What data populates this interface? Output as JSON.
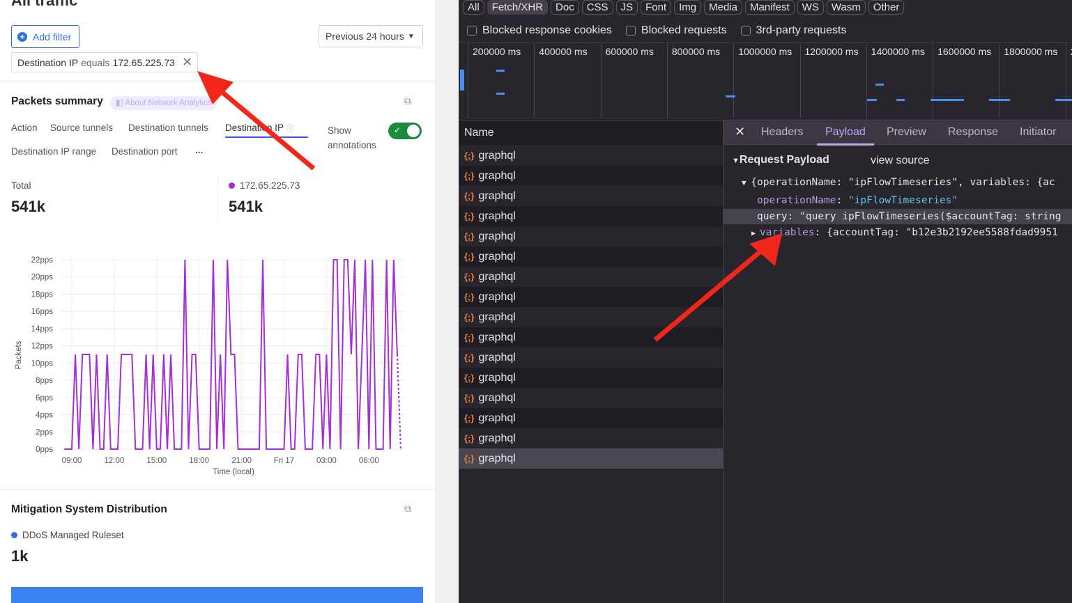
{
  "left": {
    "title": "All traffic",
    "add_filter": "Add filter",
    "time_range": "Previous 24 hours",
    "filter": {
      "field": "Destination IP",
      "operator": "equals",
      "value": "172.65.225.73"
    },
    "packets_title": "Packets summary",
    "about_link": "About Network Analytics",
    "tabs": [
      "Action",
      "Source tunnels",
      "Destination tunnels",
      "Destination IP",
      "Destination IP range",
      "Destination port",
      "..."
    ],
    "active_tab": "Destination IP",
    "show_annotations": "Show annotations",
    "annotations_on": true,
    "total_label": "Total",
    "total_value": "541k",
    "series_label": "172.65.225.73",
    "series_value": "541k",
    "mitigation_title": "Mitigation System Distribution",
    "mitigation_legend": "DDoS Managed Ruleset",
    "mitigation_value": "1k",
    "colors": {
      "accent": "#2f6fe4",
      "series": "#a52fd6",
      "toggle": "#1d8a3c"
    }
  },
  "chart_data": {
    "type": "line",
    "xlabel": "Time (local)",
    "ylabel": "Packets",
    "x_ticks": [
      "09:00",
      "12:00",
      "15:00",
      "18:00",
      "21:00",
      "Fri 17",
      "03:00",
      "06:00"
    ],
    "y_ticks": [
      "0pps",
      "2pps",
      "4pps",
      "6pps",
      "8pps",
      "10pps",
      "12pps",
      "14pps",
      "16pps",
      "18pps",
      "20pps",
      "22pps"
    ],
    "ylim": [
      0,
      22
    ],
    "grid": true,
    "series": [
      {
        "color": "#a52fd6",
        "points": [
          [
            "Thu 08:28",
            0
          ],
          [
            "Thu 09:00",
            0
          ],
          [
            "Thu 09:15",
            11
          ],
          [
            "Thu 09:30",
            0
          ],
          [
            "Thu 09:45",
            11
          ],
          [
            "Thu 10:15",
            11
          ],
          [
            "Thu 10:30",
            0
          ],
          [
            "Thu 10:45",
            11
          ],
          [
            "Thu 11:00",
            0
          ],
          [
            "Thu 11:15",
            0
          ],
          [
            "Thu 11:30",
            11
          ],
          [
            "Thu 11:45",
            0
          ],
          [
            "Thu 12:15",
            0
          ],
          [
            "Thu 12:30",
            11
          ],
          [
            "Thu 13:15",
            11
          ],
          [
            "Thu 13:30",
            0
          ],
          [
            "Thu 14:00",
            0
          ],
          [
            "Thu 14:15",
            11
          ],
          [
            "Thu 14:30",
            0
          ],
          [
            "Thu 14:45",
            11
          ],
          [
            "Thu 15:00",
            0
          ],
          [
            "Thu 15:15",
            0
          ],
          [
            "Thu 15:30",
            11
          ],
          [
            "Thu 15:45",
            0
          ],
          [
            "Thu 16:00",
            11
          ],
          [
            "Thu 16:15",
            0
          ],
          [
            "Thu 16:45",
            0
          ],
          [
            "Thu 17:00",
            22
          ],
          [
            "Thu 17:15",
            0
          ],
          [
            "Thu 17:30",
            11
          ],
          [
            "Thu 17:45",
            11
          ],
          [
            "Thu 18:00",
            0
          ],
          [
            "Thu 18:45",
            0
          ],
          [
            "Thu 19:00",
            22
          ],
          [
            "Thu 19:15",
            0
          ],
          [
            "Thu 19:30",
            11
          ],
          [
            "Thu 19:45",
            0
          ],
          [
            "Thu 20:00",
            22
          ],
          [
            "Thu 20:15",
            11
          ],
          [
            "Thu 20:30",
            11
          ],
          [
            "Thu 20:45",
            0
          ],
          [
            "Thu 22:15",
            0
          ],
          [
            "Thu 22:30",
            22
          ],
          [
            "Thu 22:45",
            0
          ],
          [
            "Fri 00:00",
            0
          ],
          [
            "Fri 00:15",
            11
          ],
          [
            "Fri 00:30",
            0
          ],
          [
            "Fri 00:45",
            0
          ],
          [
            "Fri 01:00",
            11
          ],
          [
            "Fri 01:15",
            11
          ],
          [
            "Fri 01:30",
            0
          ],
          [
            "Fri 02:00",
            0
          ],
          [
            "Fri 02:15",
            11
          ],
          [
            "Fri 02:30",
            11
          ],
          [
            "Fri 02:45",
            0
          ],
          [
            "Fri 03:00",
            11
          ],
          [
            "Fri 03:15",
            0
          ],
          [
            "Fri 03:30",
            22
          ],
          [
            "Fri 03:45",
            22
          ],
          [
            "Fri 04:00",
            0
          ],
          [
            "Fri 04:15",
            22
          ],
          [
            "Fri 04:30",
            22
          ],
          [
            "Fri 04:45",
            11
          ],
          [
            "Fri 05:00",
            22
          ],
          [
            "Fri 05:15",
            0
          ],
          [
            "Fri 05:45",
            22
          ],
          [
            "Fri 06:00",
            0
          ],
          [
            "Fri 06:15",
            22
          ],
          [
            "Fri 06:30",
            0
          ],
          [
            "Fri 07:00",
            0
          ],
          [
            "Fri 07:15",
            22
          ],
          [
            "Fri 07:30",
            0
          ],
          [
            "Fri 07:45",
            22
          ],
          [
            "Fri 08:00",
            11
          ]
        ],
        "partial": [
          [
            "Fri 08:00",
            11
          ],
          [
            "Fri 08:15",
            0
          ]
        ]
      }
    ]
  },
  "devtools": {
    "filters": [
      "All",
      "Fetch/XHR",
      "Doc",
      "CSS",
      "JS",
      "Font",
      "Img",
      "Media",
      "Manifest",
      "WS",
      "Wasm",
      "Other"
    ],
    "active_filter": "Fetch/XHR",
    "checkboxes": [
      "Blocked response cookies",
      "Blocked requests",
      "3rd-party requests"
    ],
    "timeline_ticks": [
      "200000 ms",
      "400000 ms",
      "600000 ms",
      "800000 ms",
      "1000000 ms",
      "1200000 ms",
      "1400000 ms",
      "1600000 ms",
      "1800000 ms",
      "2"
    ],
    "name_header": "Name",
    "requests": [
      "graphql",
      "graphql",
      "graphql",
      "graphql",
      "graphql",
      "graphql",
      "graphql",
      "graphql",
      "graphql",
      "graphql",
      "graphql",
      "graphql",
      "graphql",
      "graphql",
      "graphql",
      "graphql"
    ],
    "detail_tabs": [
      "Headers",
      "Payload",
      "Preview",
      "Response",
      "Initiator"
    ],
    "active_detail_tab": "Payload",
    "payload": {
      "section": "Request Payload",
      "view_source": "view source",
      "summary": "{operationName: \"ipFlowTimeseries\", variables: {ac",
      "op_key": "operationName",
      "op_val": "\"ipFlowTimeseries\"",
      "query": "query: \"query ipFlowTimeseries($accountTag: string",
      "var_key": "variables",
      "var_val": ": {accountTag: \"b12e3b2192ee5588fdad9951"
    }
  }
}
